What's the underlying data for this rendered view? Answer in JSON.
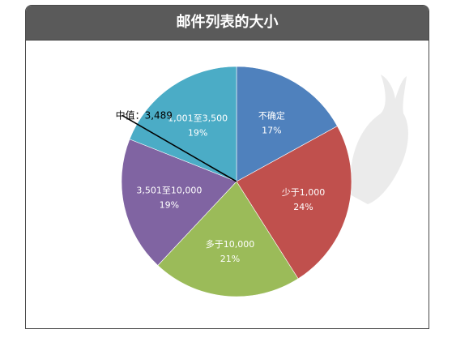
{
  "chart_data": {
    "type": "pie",
    "title": "邮件列表的大小",
    "slices": [
      {
        "label": "不确定",
        "value": 17,
        "pct_label": "17%",
        "color": "#4f81bd"
      },
      {
        "label": "少于1,000",
        "value": 24,
        "pct_label": "24%",
        "color": "#c0504d"
      },
      {
        "label": "多于10,000",
        "value": 21,
        "pct_label": "21%",
        "color": "#9bbb59"
      },
      {
        "label": "3,501至10,000",
        "value": 19,
        "pct_label": "19%",
        "color": "#8064a2"
      },
      {
        "label": "1,001至3,500",
        "value": 19,
        "pct_label": "19%",
        "color": "#4bacc6"
      }
    ],
    "start_angle_deg": 0,
    "direction": "clockwise",
    "annotation": {
      "text": "中值：3,489",
      "angle_deg": 300
    }
  }
}
